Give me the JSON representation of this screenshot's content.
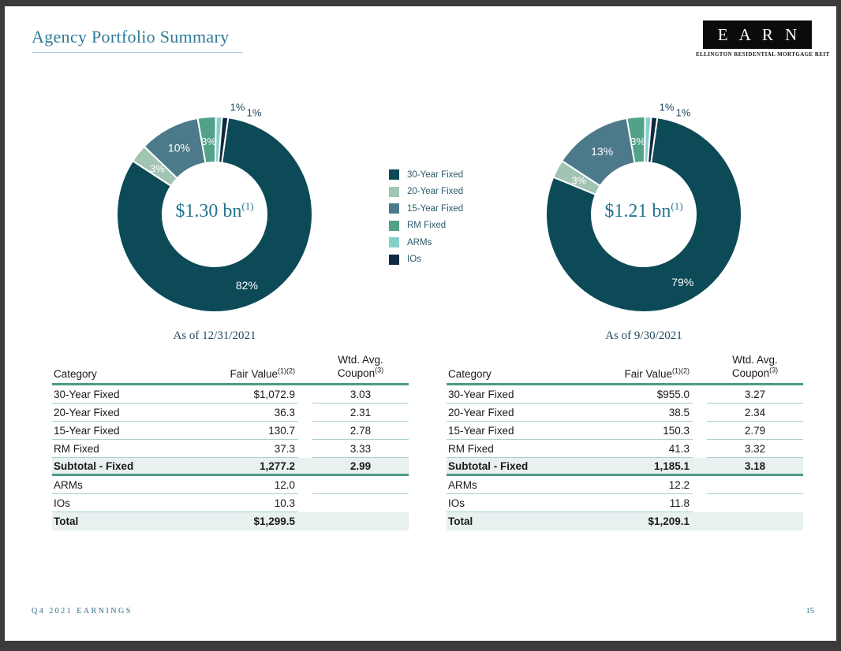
{
  "header": {
    "title": "Agency Portfolio Summary",
    "logo_text": "E A R N",
    "logo_subtitle": "ELLINGTON RESIDENTIAL MORTGAGE REIT"
  },
  "colors": {
    "thick_rule": "#4e9a8b",
    "thin_rule": "#a8d1cf",
    "row_tint": "#e8f1f0",
    "title_color": "#2e7b97",
    "caption_color": "#1d4a5e",
    "footer_color": "#2c6c86",
    "legend_text": "#2b5a6d",
    "outside_label": "#1a4a5e"
  },
  "legend": {
    "items": [
      {
        "label": "30-Year Fixed",
        "color": "#0d4a58"
      },
      {
        "label": "20-Year Fixed",
        "color": "#a2c4b3"
      },
      {
        "label": "15-Year Fixed",
        "color": "#4c7a8a"
      },
      {
        "label": "RM Fixed",
        "color": "#52a189"
      },
      {
        "label": "ARMs",
        "color": "#87d0ca"
      },
      {
        "label": "IOs",
        "color": "#102940"
      }
    ]
  },
  "chart_data": [
    {
      "type": "pie",
      "title": "As of 12/31/2021",
      "labels": [
        "30-Year Fixed",
        "20-Year Fixed",
        "15-Year Fixed",
        "RM Fixed",
        "ARMs",
        "IOs"
      ],
      "values": [
        82,
        3,
        10,
        3,
        1,
        1
      ],
      "unit": "%",
      "center_label": "$1.30 bn",
      "center_sup": "(1)",
      "start_angle_deg": 8,
      "legend_position": "center-between-charts"
    },
    {
      "type": "pie",
      "title": "As of 9/30/2021",
      "labels": [
        "30-Year Fixed",
        "20-Year Fixed",
        "15-Year Fixed",
        "RM Fixed",
        "ARMs",
        "IOs"
      ],
      "values": [
        79,
        3,
        13,
        3,
        1,
        1
      ],
      "unit": "%",
      "center_label": "$1.21 bn",
      "center_sup": "(1)",
      "start_angle_deg": 8,
      "legend_position": "center-between-charts"
    }
  ],
  "tables": [
    {
      "headers": {
        "category": "Category",
        "fair_value": "Fair Value",
        "fair_value_sup": "(1)(2)",
        "coupon_top": "Wtd. Avg.",
        "coupon_bottom": "Coupon",
        "coupon_sup": "(3)"
      },
      "rows": [
        {
          "category": "30-Year Fixed",
          "fair_value": "$1,072.9",
          "coupon": "3.03",
          "style": "normal",
          "rule": "all"
        },
        {
          "category": "20-Year Fixed",
          "fair_value": "36.3",
          "coupon": "2.31",
          "style": "normal",
          "rule": "all"
        },
        {
          "category": "15-Year Fixed",
          "fair_value": "130.7",
          "coupon": "2.78",
          "style": "normal",
          "rule": "all"
        },
        {
          "category": "RM Fixed",
          "fair_value": "37.3",
          "coupon": "3.33",
          "style": "normal",
          "rule": "all"
        },
        {
          "category": "Subtotal - Fixed",
          "fair_value": "1,277.2",
          "coupon": "2.99",
          "style": "subtotal",
          "rule": "thick"
        },
        {
          "category": "ARMs",
          "fair_value": "12.0",
          "coupon": "",
          "style": "normal",
          "rule": "all"
        },
        {
          "category": "IOs",
          "fair_value": "10.3",
          "coupon": "",
          "style": "normal",
          "rule": "left-only"
        },
        {
          "category": "Total",
          "fair_value": "$1,299.5",
          "coupon": "",
          "style": "total",
          "rule": "none"
        }
      ]
    },
    {
      "headers": {
        "category": "Category",
        "fair_value": "Fair Value",
        "fair_value_sup": "(1)(2)",
        "coupon_top": "Wtd. Avg.",
        "coupon_bottom": "Coupon",
        "coupon_sup": "(3)"
      },
      "rows": [
        {
          "category": "30-Year Fixed",
          "fair_value": "$955.0",
          "coupon": "3.27",
          "style": "normal",
          "rule": "all"
        },
        {
          "category": "20-Year Fixed",
          "fair_value": "38.5",
          "coupon": "2.34",
          "style": "normal",
          "rule": "all"
        },
        {
          "category": "15-Year Fixed",
          "fair_value": "150.3",
          "coupon": "2.79",
          "style": "normal",
          "rule": "all"
        },
        {
          "category": "RM Fixed",
          "fair_value": "41.3",
          "coupon": "3.32",
          "style": "normal",
          "rule": "all"
        },
        {
          "category": "Subtotal - Fixed",
          "fair_value": "1,185.1",
          "coupon": "3.18",
          "style": "subtotal",
          "rule": "thick"
        },
        {
          "category": "ARMs",
          "fair_value": "12.2",
          "coupon": "",
          "style": "normal",
          "rule": "all"
        },
        {
          "category": "IOs",
          "fair_value": "11.8",
          "coupon": "",
          "style": "normal",
          "rule": "left-only"
        },
        {
          "category": "Total",
          "fair_value": "$1,209.1",
          "coupon": "",
          "style": "total",
          "rule": "none"
        }
      ]
    }
  ],
  "footer": {
    "left": "Q4 2021 EARNINGS",
    "page": "15"
  }
}
